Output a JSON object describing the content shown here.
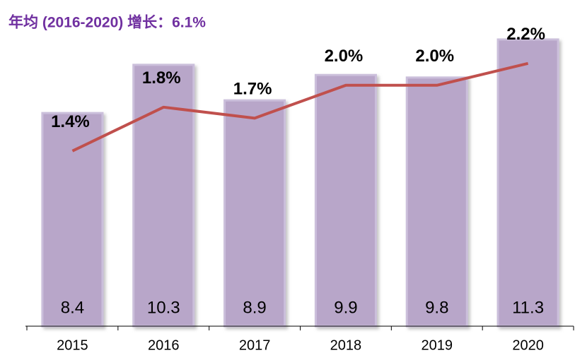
{
  "chart_data": {
    "type": "bar_line",
    "title": "年均 (2016-2020) 增长：6.1%",
    "categories": [
      "2015",
      "2016",
      "2017",
      "2018",
      "2019",
      "2020"
    ],
    "series": [
      {
        "type": "bar",
        "color": "#b8a6c9",
        "values": [
          8.4,
          10.3,
          8.9,
          9.9,
          9.8,
          11.3
        ]
      },
      {
        "type": "line",
        "axis": "y2",
        "color": "#c0504d",
        "values": [
          1.4,
          1.8,
          1.7,
          2.0,
          2.0,
          2.2
        ],
        "value_labels": [
          "1.4%",
          "1.8%",
          "1.7%",
          "2.0%",
          "2.0%",
          "2.2%"
        ]
      }
    ],
    "ylim": [
      0,
      12.3
    ],
    "y2lim": [
      -0.2,
      2.65
    ]
  }
}
